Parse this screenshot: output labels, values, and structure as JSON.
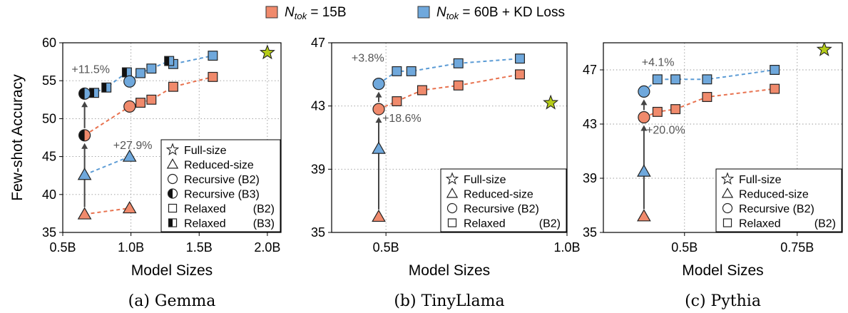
{
  "legend": {
    "items": [
      {
        "label_main": "N",
        "label_sub": "tok",
        "label_rest": " = 15B",
        "color": "#f08a6c"
      },
      {
        "label_main": "N",
        "label_sub": "tok",
        "label_rest": " = 60B + KD Loss",
        "color": "#6fa8dc"
      }
    ]
  },
  "marker_legend": {
    "full": "Full-size",
    "reduced": "Reduced-size",
    "rec_b2": "Recursive (B2)",
    "rec_b3": "Recursive (B3)",
    "rel_b2_a": "Relaxed",
    "rel_b2_b": "(B2)",
    "rel_b3_a": "Relaxed",
    "rel_b3_b": "(B3)"
  },
  "colors": {
    "orange": "#f08a6c",
    "blue": "#6fa8dc",
    "star": "#b5cc18",
    "orange_line": "#e8724f",
    "blue_line": "#5b9bd5"
  },
  "chart_data": [
    {
      "type": "scatter",
      "caption": "(a) Gemma",
      "xlabel": "Model Sizes",
      "ylabel": "Few-shot Accuracy",
      "xlim": [
        0.5,
        2.1
      ],
      "ylim": [
        35,
        60
      ],
      "xticks": [
        0.5,
        1.0,
        1.5,
        2.0
      ],
      "xtick_labels": [
        "0.5B",
        "1.0B",
        "1.5B",
        "2.0B"
      ],
      "yticks": [
        35,
        40,
        45,
        50,
        55,
        60
      ],
      "ytick_labels": [
        "35",
        "40",
        "45",
        "50",
        "55",
        "60"
      ],
      "grid": true,
      "legend_position": "bottom-right",
      "star": {
        "x": 2.0,
        "y": 58.7
      },
      "series": [
        {
          "name": "N_tok = 15B",
          "color": "orange",
          "reduced": [
            {
              "x": 0.66,
              "y": 37.4
            },
            {
              "x": 0.99,
              "y": 38.2
            }
          ],
          "rec_b2": [
            {
              "x": 0.99,
              "y": 51.6
            }
          ],
          "rec_b3": [
            {
              "x": 0.66,
              "y": 47.8
            }
          ],
          "rel_b2": [
            {
              "x": 1.07,
              "y": 52.1
            },
            {
              "x": 1.15,
              "y": 52.5
            },
            {
              "x": 1.31,
              "y": 54.2
            },
            {
              "x": 1.6,
              "y": 55.5
            }
          ],
          "rel_b3": []
        },
        {
          "name": "N_tok = 60B + KD Loss",
          "color": "blue",
          "reduced": [
            {
              "x": 0.66,
              "y": 42.6
            },
            {
              "x": 0.99,
              "y": 45.0
            }
          ],
          "rec_b2": [
            {
              "x": 0.99,
              "y": 54.9
            }
          ],
          "rec_b3": [
            {
              "x": 0.66,
              "y": 53.3
            }
          ],
          "rel_b2": [
            {
              "x": 1.07,
              "y": 56.0
            },
            {
              "x": 1.15,
              "y": 56.6
            },
            {
              "x": 1.31,
              "y": 57.2
            },
            {
              "x": 1.6,
              "y": 58.3
            }
          ],
          "rel_b3": [
            {
              "x": 0.73,
              "y": 53.4
            },
            {
              "x": 0.82,
              "y": 54.1
            },
            {
              "x": 0.97,
              "y": 56.1
            },
            {
              "x": 1.28,
              "y": 57.6
            }
          ]
        }
      ],
      "connect_orange": [
        [
          0.66,
          37.4
        ],
        [
          0.99,
          38.2
        ]
      ],
      "connect_blue": [
        [
          0.66,
          42.6
        ],
        [
          0.99,
          45.0
        ]
      ],
      "curve_orange": [
        [
          0.66,
          47.8
        ],
        [
          0.99,
          51.6
        ],
        [
          1.07,
          52.1
        ],
        [
          1.15,
          52.5
        ],
        [
          1.31,
          54.2
        ],
        [
          1.6,
          55.5
        ]
      ],
      "curve_blue": [
        [
          0.66,
          53.3
        ],
        [
          0.73,
          53.4
        ],
        [
          0.82,
          54.1
        ],
        [
          0.97,
          56.1
        ],
        [
          0.99,
          54.9
        ],
        [
          1.07,
          56.0
        ],
        [
          1.15,
          56.6
        ],
        [
          1.28,
          57.6
        ],
        [
          1.31,
          57.2
        ],
        [
          1.6,
          58.3
        ]
      ],
      "arrow": {
        "x": 0.66,
        "from": 37.4,
        "mid": 47.8,
        "to": 53.3
      },
      "annotations": [
        {
          "text": "+11.5%",
          "x": 0.565,
          "y": 56.0
        },
        {
          "text": "+27.9%",
          "x": 0.87,
          "y": 46.0
        }
      ],
      "legend_keys": [
        "full",
        "reduced",
        "rec_b2",
        "rec_b3",
        "rel_b2",
        "rel_b3"
      ]
    },
    {
      "type": "scatter",
      "caption": "(b) TinyLlama",
      "xlabel": "Model Sizes",
      "ylabel": "",
      "xlim": [
        0.35,
        1.0
      ],
      "ylim": [
        35,
        47
      ],
      "xticks": [
        0.5,
        1.0
      ],
      "xtick_labels": [
        "0.5B",
        "1.0B"
      ],
      "yticks": [
        35,
        39,
        43,
        47
      ],
      "ytick_labels": [
        "35",
        "39",
        "43",
        "47"
      ],
      "grid": true,
      "legend_position": "bottom-right",
      "star": {
        "x": 0.955,
        "y": 43.2
      },
      "series": [
        {
          "name": "N_tok = 15B",
          "color": "orange",
          "reduced": [
            {
              "x": 0.48,
              "y": 36.0
            }
          ],
          "rec_b2": [
            {
              "x": 0.48,
              "y": 42.8
            }
          ],
          "rec_b3": [],
          "rel_b2": [
            {
              "x": 0.53,
              "y": 43.3
            },
            {
              "x": 0.6,
              "y": 44.0
            },
            {
              "x": 0.7,
              "y": 44.3
            },
            {
              "x": 0.87,
              "y": 45.0
            }
          ],
          "rel_b3": []
        },
        {
          "name": "N_tok = 60B + KD Loss",
          "color": "blue",
          "reduced": [
            {
              "x": 0.48,
              "y": 40.3
            }
          ],
          "rec_b2": [
            {
              "x": 0.48,
              "y": 44.4
            }
          ],
          "rec_b3": [],
          "rel_b2": [
            {
              "x": 0.53,
              "y": 45.2
            },
            {
              "x": 0.57,
              "y": 45.2
            },
            {
              "x": 0.7,
              "y": 45.7
            },
            {
              "x": 0.87,
              "y": 46.0
            }
          ],
          "rel_b3": []
        }
      ],
      "connect_orange": [],
      "connect_blue": [],
      "curve_orange": [
        [
          0.48,
          42.8
        ],
        [
          0.53,
          43.3
        ],
        [
          0.6,
          44.0
        ],
        [
          0.7,
          44.3
        ],
        [
          0.87,
          45.0
        ]
      ],
      "curve_blue": [
        [
          0.48,
          44.4
        ],
        [
          0.53,
          45.2
        ],
        [
          0.57,
          45.2
        ],
        [
          0.7,
          45.7
        ],
        [
          0.87,
          46.0
        ]
      ],
      "arrow": {
        "x": 0.48,
        "from": 36.0,
        "mid": 42.8,
        "to": 44.4
      },
      "annotations": [
        {
          "text": "+3.8%",
          "x": 0.405,
          "y": 45.8
        },
        {
          "text": "+18.6%",
          "x": 0.49,
          "y": 42.0
        }
      ],
      "legend_keys": [
        "full",
        "reduced",
        "rec_b2",
        "rel_b2"
      ]
    },
    {
      "type": "scatter",
      "caption": "(c) Pythia",
      "xlabel": "Model Sizes",
      "ylabel": "",
      "xlim": [
        0.32,
        0.85
      ],
      "ylim": [
        35,
        49
      ],
      "xticks": [
        0.5,
        0.75
      ],
      "xtick_labels": [
        "0.5B",
        "0.75B"
      ],
      "yticks": [
        35,
        39,
        43,
        47
      ],
      "ytick_labels": [
        "35",
        "39",
        "43",
        "47"
      ],
      "grid": true,
      "legend_position": "bottom-right",
      "star": {
        "x": 0.81,
        "y": 48.5
      },
      "series": [
        {
          "name": "N_tok = 15B",
          "color": "orange",
          "reduced": [
            {
              "x": 0.41,
              "y": 36.2
            }
          ],
          "rec_b2": [
            {
              "x": 0.41,
              "y": 43.5
            }
          ],
          "rec_b3": [],
          "rel_b2": [
            {
              "x": 0.44,
              "y": 43.9
            },
            {
              "x": 0.48,
              "y": 44.1
            },
            {
              "x": 0.55,
              "y": 45.0
            },
            {
              "x": 0.7,
              "y": 45.6
            }
          ],
          "rel_b3": []
        },
        {
          "name": "N_tok = 60B + KD Loss",
          "color": "blue",
          "reduced": [
            {
              "x": 0.41,
              "y": 39.5
            }
          ],
          "rec_b2": [
            {
              "x": 0.41,
              "y": 45.4
            }
          ],
          "rec_b3": [],
          "rel_b2": [
            {
              "x": 0.44,
              "y": 46.3
            },
            {
              "x": 0.48,
              "y": 46.3
            },
            {
              "x": 0.55,
              "y": 46.3
            },
            {
              "x": 0.7,
              "y": 47.0
            }
          ],
          "rel_b3": []
        }
      ],
      "connect_orange": [],
      "connect_blue": [],
      "curve_orange": [
        [
          0.41,
          43.5
        ],
        [
          0.44,
          43.9
        ],
        [
          0.48,
          44.1
        ],
        [
          0.55,
          45.0
        ],
        [
          0.7,
          45.6
        ]
      ],
      "curve_blue": [
        [
          0.41,
          45.4
        ],
        [
          0.44,
          46.3
        ],
        [
          0.48,
          46.3
        ],
        [
          0.55,
          46.3
        ],
        [
          0.7,
          47.0
        ]
      ],
      "arrow": {
        "x": 0.41,
        "from": 36.2,
        "mid": 43.5,
        "to": 45.4
      },
      "annotations": [
        {
          "text": "+4.1%",
          "x": 0.405,
          "y": 47.3
        },
        {
          "text": "+20.0%",
          "x": 0.415,
          "y": 42.3
        }
      ],
      "legend_keys": [
        "full",
        "reduced",
        "rec_b2",
        "rel_b2"
      ]
    }
  ]
}
